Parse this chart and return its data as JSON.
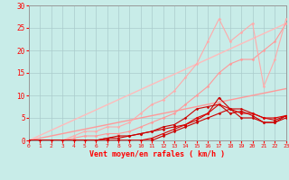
{
  "xlabel": "Vent moyen/en rafales ( km/h )",
  "xlim": [
    0,
    23
  ],
  "ylim": [
    0,
    30
  ],
  "xticks": [
    0,
    1,
    2,
    3,
    4,
    5,
    6,
    7,
    8,
    9,
    10,
    11,
    12,
    13,
    14,
    15,
    16,
    17,
    18,
    19,
    20,
    21,
    22,
    23
  ],
  "yticks": [
    0,
    5,
    10,
    15,
    20,
    25,
    30
  ],
  "bg_color": "#c8ece8",
  "grid_color": "#aacccc",
  "series": [
    {
      "x": [
        0,
        23
      ],
      "y": [
        0,
        11.5
      ],
      "color": "#ff9999",
      "lw": 1.0,
      "marker": null,
      "ms": 0
    },
    {
      "x": [
        0,
        23
      ],
      "y": [
        0,
        26
      ],
      "color": "#ffbbbb",
      "lw": 1.0,
      "marker": null,
      "ms": 0
    },
    {
      "x": [
        0,
        1,
        2,
        3,
        4,
        5,
        6,
        7,
        8,
        9,
        10,
        11,
        12,
        13,
        14,
        15,
        16,
        17,
        18,
        19,
        20,
        21,
        22,
        23
      ],
      "y": [
        0,
        0,
        0,
        0,
        0.5,
        1,
        1,
        1.5,
        1.5,
        2,
        3,
        4,
        5,
        6,
        8,
        10,
        12,
        15,
        17,
        18,
        18,
        20,
        22,
        26
      ],
      "color": "#ff9999",
      "lw": 0.8,
      "marker": "D",
      "ms": 1.5
    },
    {
      "x": [
        0,
        1,
        2,
        3,
        4,
        5,
        6,
        7,
        8,
        9,
        10,
        11,
        12,
        13,
        14,
        15,
        16,
        17,
        18,
        19,
        20,
        21,
        22,
        23
      ],
      "y": [
        0,
        0,
        0,
        0,
        1,
        2,
        2,
        3,
        3,
        4,
        6,
        8,
        9,
        11,
        14,
        17,
        22,
        27,
        22,
        24,
        26,
        12,
        18,
        27
      ],
      "color": "#ffaaaa",
      "lw": 0.8,
      "marker": "D",
      "ms": 1.5
    },
    {
      "x": [
        0,
        1,
        2,
        3,
        4,
        5,
        6,
        7,
        8,
        9,
        10,
        11,
        12,
        13,
        14,
        15,
        16,
        17,
        18,
        19,
        20,
        21,
        22,
        23
      ],
      "y": [
        0,
        0,
        0,
        0,
        0,
        0,
        0,
        0.5,
        1,
        1,
        1.5,
        2,
        3,
        3.5,
        5,
        7,
        7.5,
        8,
        6,
        6.5,
        5.5,
        4,
        4,
        5.5
      ],
      "color": "#cc0000",
      "lw": 0.8,
      "marker": "D",
      "ms": 1.5
    },
    {
      "x": [
        0,
        1,
        2,
        3,
        4,
        5,
        6,
        7,
        8,
        9,
        10,
        11,
        12,
        13,
        14,
        15,
        16,
        17,
        18,
        19,
        20,
        21,
        22,
        23
      ],
      "y": [
        0,
        0,
        0,
        0,
        0,
        0,
        0,
        0.5,
        0.5,
        1,
        1.5,
        2,
        2.5,
        3,
        3.5,
        4.5,
        6,
        9.5,
        7,
        7,
        6,
        5,
        4.5,
        5.5
      ],
      "color": "#cc0000",
      "lw": 0.8,
      "marker": "D",
      "ms": 1.5
    },
    {
      "x": [
        0,
        1,
        2,
        3,
        4,
        5,
        6,
        7,
        8,
        9,
        10,
        11,
        12,
        13,
        14,
        15,
        16,
        17,
        18,
        19,
        20,
        21,
        22,
        23
      ],
      "y": [
        0,
        0,
        0,
        0,
        0,
        0,
        0,
        0,
        0,
        0,
        0,
        0.5,
        1.5,
        2.5,
        3.5,
        5,
        6,
        8,
        7,
        6,
        6,
        5,
        5,
        5.5
      ],
      "color": "#dd0000",
      "lw": 0.8,
      "marker": "D",
      "ms": 1.5
    },
    {
      "x": [
        0,
        1,
        2,
        3,
        4,
        5,
        6,
        7,
        8,
        9,
        10,
        11,
        12,
        13,
        14,
        15,
        16,
        17,
        18,
        19,
        20,
        21,
        22,
        23
      ],
      "y": [
        0,
        0,
        0,
        0,
        0,
        0,
        0,
        0,
        0,
        0,
        0,
        0,
        1,
        2,
        3,
        4,
        5,
        6,
        7,
        5,
        5,
        4,
        4,
        5
      ],
      "color": "#cc0000",
      "lw": 0.8,
      "marker": "D",
      "ms": 1.5
    }
  ]
}
